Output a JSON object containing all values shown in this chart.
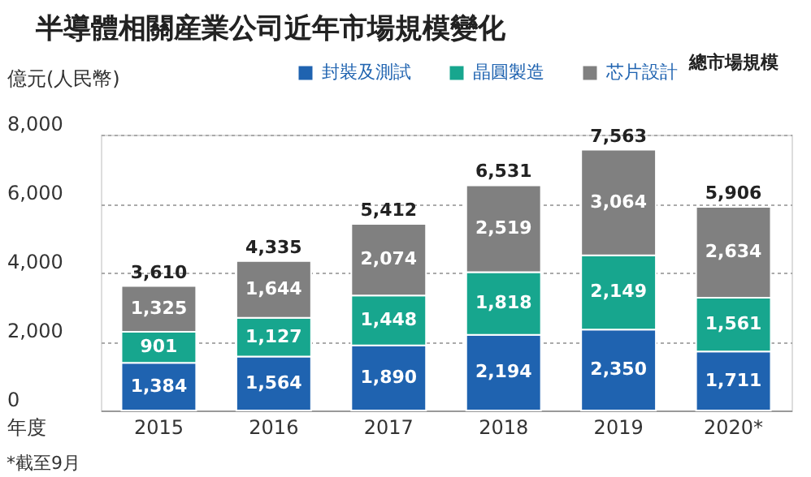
{
  "chart_data": {
    "type": "bar",
    "title": "半導體相關産業公司近年市場規模變化",
    "ylabel": "億元(人民幣)",
    "xlabel": "年度",
    "categories": [
      "2015",
      "2016",
      "2017",
      "2018",
      "2019",
      "2020*"
    ],
    "series": [
      {
        "name": "封裝及測試",
        "color": "#1f63b0",
        "values": [
          1384,
          1564,
          1890,
          2194,
          2350,
          1711
        ],
        "value_labels": [
          "1,384",
          "1,564",
          "1,890",
          "2,194",
          "2,350",
          "1,711"
        ]
      },
      {
        "name": "晶圓製造",
        "color": "#17a68e",
        "values": [
          901,
          1127,
          1448,
          1818,
          2149,
          1561
        ],
        "value_labels": [
          "901",
          "1,127",
          "1,448",
          "1,818",
          "2,149",
          "1,561"
        ]
      },
      {
        "name": "芯片設計",
        "color": "#808080",
        "values": [
          1325,
          1644,
          2074,
          2519,
          3064,
          2634
        ],
        "value_labels": [
          "1,325",
          "1,644",
          "2,074",
          "2,519",
          "3,064",
          "2,634"
        ]
      }
    ],
    "stacked": true,
    "totals": [
      "3,610",
      "4,335",
      "5,412",
      "6,531",
      "7,563",
      "5,906"
    ],
    "ylim": [
      0,
      8000
    ],
    "yticks": [
      0,
      {
        "value": 2000,
        "label": "2,000"
      },
      {
        "value": 4000,
        "label": "4,000"
      },
      {
        "value": 6000,
        "label": "6,000"
      },
      {
        "value": 8000,
        "label": "8,000"
      }
    ],
    "grid": "y",
    "legend": "top",
    "annotations": [
      "總市場規模",
      "*截至9月"
    ]
  }
}
